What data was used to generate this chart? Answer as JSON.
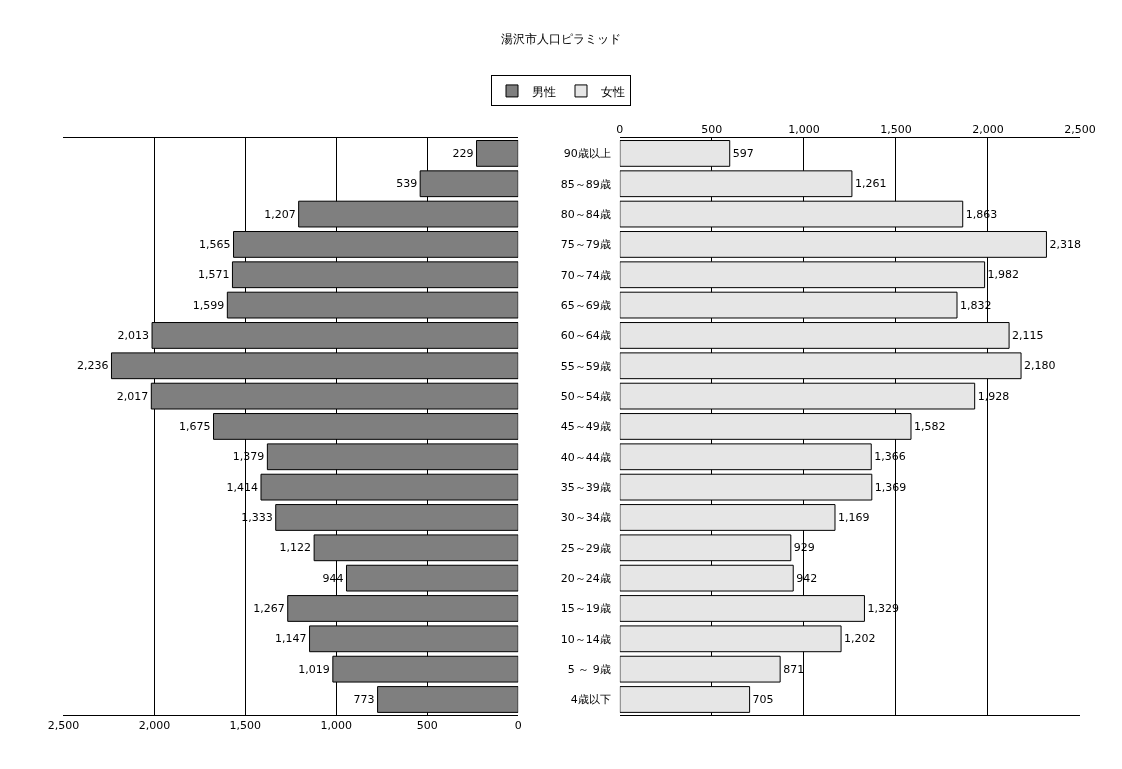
{
  "chart_data": [
    {
      "type": "bar",
      "orientation": "horizontal",
      "title": "湯沢市人口ピラミッド",
      "categories": [
        null,
        null,
        null,
        null,
        null,
        null,
        null,
        null,
        null,
        null,
        null,
        null,
        null,
        null,
        null,
        null,
        null,
        null,
        null
      ],
      "series": [
        {
          "name": "男性",
          "color": "#7f7f7f",
          "values": [
            229,
            539,
            1207,
            1565,
            1571,
            1599,
            2013,
            2236,
            2017,
            1675,
            1379,
            1414,
            1333,
            1122,
            944,
            1267,
            1147,
            1019,
            773
          ],
          "value_labels": [
            "229",
            "539",
            "1,207",
            "1,565",
            "1,571",
            "1,599",
            "2,013",
            "2,236",
            "2,017",
            "1,675",
            "1,379",
            "1,414",
            "1,333",
            "1,122",
            "944",
            "1,267",
            "1,147",
            "1,019",
            "773"
          ]
        }
      ],
      "xlim": [
        2500,
        0
      ],
      "xticks": [
        {
          "value": 2500,
          "label": "2,500"
        },
        {
          "value": 2000,
          "label": "2,000"
        },
        {
          "value": 1500,
          "label": "1,500"
        },
        {
          "value": 1000,
          "label": "1,000"
        },
        500,
        0
      ],
      "grid": "x",
      "legend": "top",
      "tick_labels": "x"
    },
    {
      "type": "bar",
      "orientation": "horizontal",
      "categories": [
        "90歳以上",
        "85～89歳",
        "80～84歳",
        "75～79歳",
        "70～74歳",
        "65～69歳",
        "60～64歳",
        "55～59歳",
        "50～54歳",
        "45～49歳",
        "40～44歳",
        "35～39歳",
        "30～34歳",
        "25～29歳",
        "20～24歳",
        "15～19歳",
        "10～14歳",
        "5 ～ 9歳",
        "4歳以下"
      ],
      "series": [
        {
          "name": "女性",
          "color": "#e6e6e6",
          "values": [
            597,
            1261,
            1863,
            2318,
            1982,
            1832,
            2115,
            2180,
            1928,
            1582,
            1366,
            1369,
            1169,
            929,
            942,
            1329,
            1202,
            871,
            705
          ],
          "value_labels": [
            "597",
            "1,261",
            "1,863",
            "2,318",
            "1,982",
            "1,832",
            "2,115",
            "2,180",
            "1,928",
            "1,582",
            "1,366",
            "1,369",
            "1,169",
            "929",
            "942",
            "1,329",
            "1,202",
            "871",
            "705"
          ]
        }
      ],
      "xlim": [
        0,
        2500
      ],
      "xticks": [
        0,
        500,
        {
          "value": 1000,
          "label": "1,000"
        },
        {
          "value": 1500,
          "label": "1,500"
        },
        {
          "value": 2000,
          "label": "2,000"
        },
        {
          "value": 2500,
          "label": "2,500"
        }
      ],
      "grid": "x",
      "legend": "top"
    }
  ]
}
